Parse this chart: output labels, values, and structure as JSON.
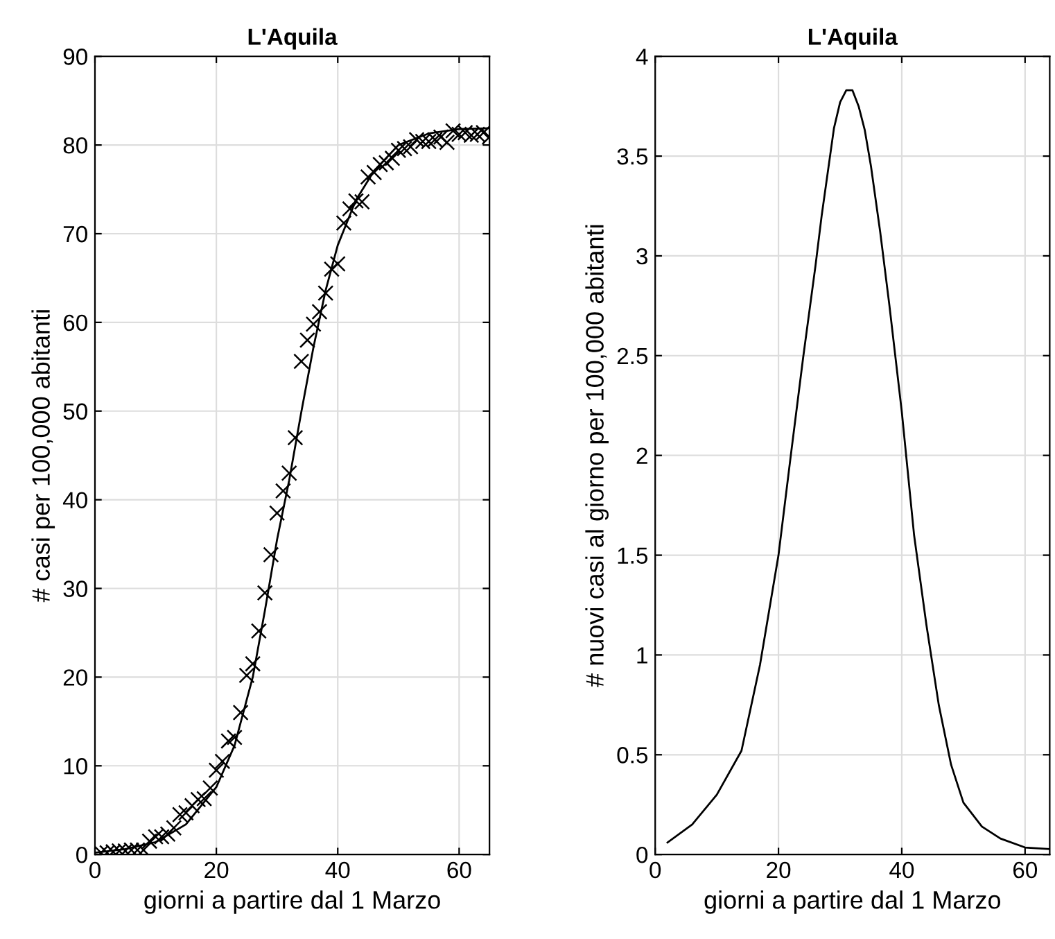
{
  "chart_data": [
    {
      "type": "line",
      "title": "L'Aquila",
      "xlabel": "giorni a partire dal 1 Marzo",
      "ylabel": "# casi per 100,000 abitanti",
      "xlim": [
        0,
        65
      ],
      "ylim": [
        0,
        90
      ],
      "xticks": [
        0,
        20,
        40,
        60
      ],
      "yticks": [
        0,
        10,
        20,
        30,
        40,
        50,
        60,
        70,
        80,
        90
      ],
      "grid": true,
      "series": [
        {
          "type": "scatter",
          "marker": "cross",
          "color": "#000000",
          "x": [
            1,
            2,
            3,
            4,
            5,
            6,
            7,
            8,
            9,
            10,
            11,
            12,
            13,
            14,
            15,
            16,
            17,
            18,
            19,
            20,
            21,
            22,
            23,
            24,
            25,
            26,
            27,
            28,
            29,
            30,
            31,
            32,
            33,
            34,
            35,
            36,
            37,
            38,
            39,
            40,
            41,
            42,
            43,
            44,
            45,
            46,
            47,
            48,
            49,
            50,
            51,
            52,
            53,
            54,
            55,
            56,
            57,
            58,
            59,
            60,
            61,
            62,
            63,
            64,
            65
          ],
          "values": [
            0.2,
            0.2,
            0.3,
            0.4,
            0.4,
            0.5,
            0.5,
            0.5,
            1.5,
            2,
            2,
            2.3,
            3,
            4.5,
            4.7,
            5.5,
            6.2,
            6.3,
            7.5,
            9.5,
            10.5,
            12.8,
            13.2,
            16,
            20.2,
            21.5,
            25.2,
            29.5,
            33.8,
            38.5,
            41,
            43,
            47,
            55.6,
            58,
            59.8,
            61.2,
            63.3,
            66,
            66.6,
            71.2,
            72.8,
            73.7,
            73.6,
            76.4,
            76.9,
            77.8,
            78,
            78.5,
            79.4,
            79.6,
            79.8,
            80.6,
            80.4,
            80.4,
            80.6,
            80.9,
            80.3,
            81.6,
            81.2,
            81.4,
            81.1,
            81.2,
            81.4,
            80.9
          ]
        },
        {
          "marker": "none",
          "line_style": "solid",
          "color": "#000000",
          "x": [
            0,
            5,
            10,
            15,
            20,
            23,
            26,
            28,
            30,
            32,
            34,
            36,
            38,
            40,
            43,
            46,
            50,
            55,
            60,
            65
          ],
          "values": [
            0.2,
            0.6,
            1.4,
            3.4,
            7.6,
            12.3,
            20,
            27.5,
            35.5,
            42.2,
            49.9,
            57.2,
            63.6,
            68.7,
            73.8,
            77.1,
            80,
            81.3,
            81.8,
            81.9
          ]
        }
      ]
    },
    {
      "type": "line",
      "title": "L'Aquila",
      "xlabel": "giorni a partire dal 1 Marzo",
      "ylabel": "# nuovi casi al giorno per 100,000 abitanti",
      "xlim": [
        0,
        64
      ],
      "ylim": [
        0,
        4
      ],
      "xticks": [
        0,
        20,
        40,
        60
      ],
      "yticks": [
        0,
        0.5,
        1,
        1.5,
        2,
        2.5,
        3,
        3.5,
        4
      ],
      "grid": true,
      "series": [
        {
          "marker": "none",
          "line_style": "solid",
          "color": "#000000",
          "x": [
            2,
            6,
            10,
            14,
            17,
            20,
            22,
            24,
            26,
            27,
            29,
            30,
            31,
            32,
            33,
            34,
            35,
            36.5,
            38,
            40,
            42,
            44,
            46,
            48,
            50,
            53,
            56,
            60,
            64
          ],
          "values": [
            0.06,
            0.15,
            0.3,
            0.52,
            0.95,
            1.5,
            2,
            2.49,
            2.95,
            3.2,
            3.64,
            3.77,
            3.83,
            3.83,
            3.75,
            3.63,
            3.45,
            3.12,
            2.75,
            2.22,
            1.6,
            1.15,
            0.75,
            0.45,
            0.26,
            0.14,
            0.08,
            0.035,
            0.027
          ]
        }
      ]
    }
  ]
}
